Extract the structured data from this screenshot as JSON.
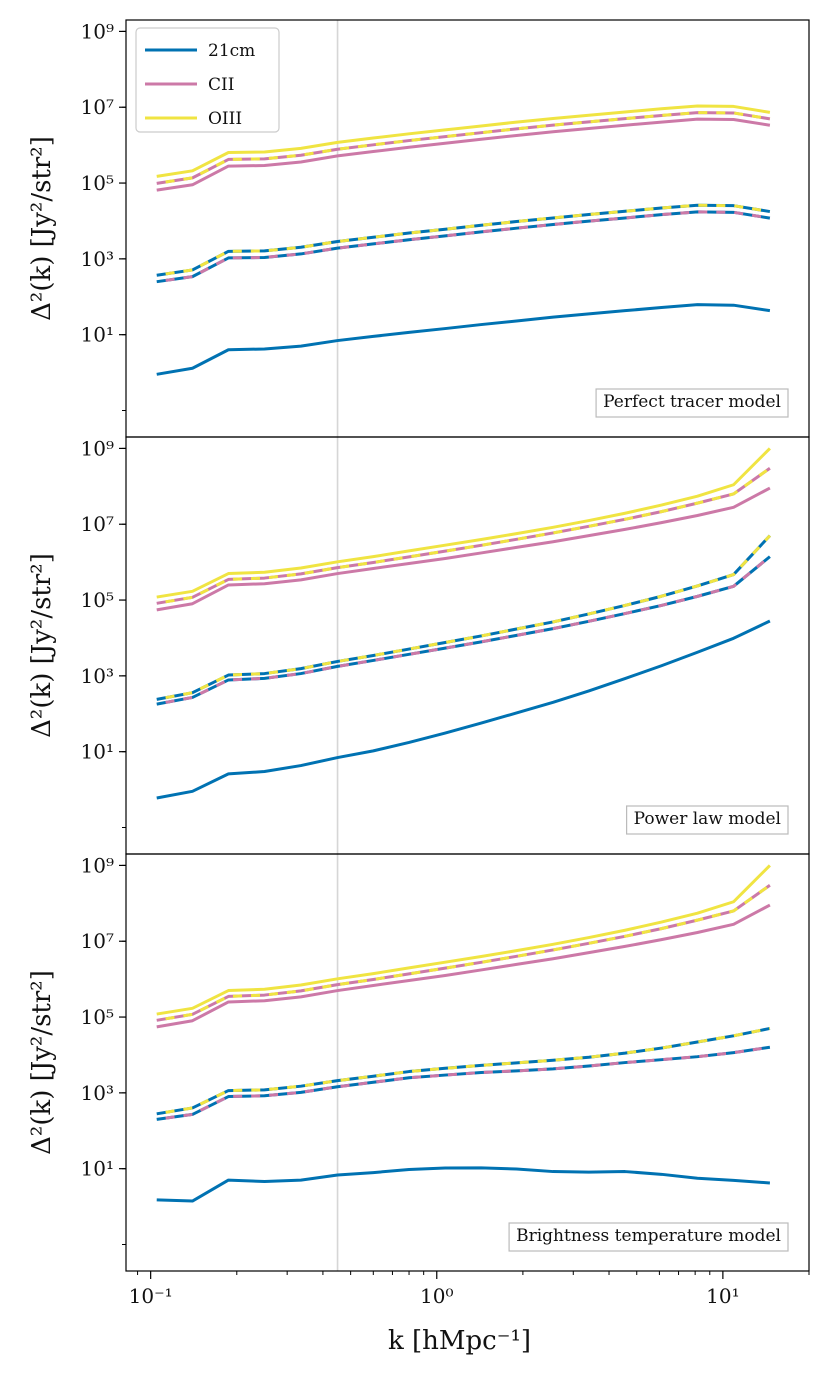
{
  "chart_data": {
    "type": "line",
    "xscale": "log",
    "yscale": "log",
    "xlim": [
      0.082,
      20
    ],
    "ylim": [
      0.02,
      2000000000.0
    ],
    "xlabel": "k [hMpc⁻¹]",
    "ylabel": "Δ²(k) [Jy²/str²]",
    "x_ticks": [
      {
        "value": 0.1,
        "label": "10⁻¹"
      },
      {
        "value": 1,
        "label": "10⁰"
      },
      {
        "value": 10,
        "label": "10¹"
      }
    ],
    "y_ticks": [
      {
        "value": 10,
        "label": "10¹"
      },
      {
        "value": 1000,
        "label": "10³"
      },
      {
        "value": 100000,
        "label": "10⁵"
      },
      {
        "value": 10000000,
        "label": "10⁷"
      },
      {
        "value": 1000000000,
        "label": "10⁹"
      }
    ],
    "vline_x": 0.45,
    "colors": {
      "21cm": "#0072b2",
      "CII": "#cc79a7",
      "OIII": "#f0e442",
      "vline": "#d6d6d6"
    },
    "legend": {
      "position": "top-left",
      "entries": [
        "21cm",
        "CII",
        "OIII"
      ]
    },
    "x": [
      0.105,
      0.14,
      0.187,
      0.25,
      0.335,
      0.45,
      0.6,
      0.8,
      1.07,
      1.43,
      1.9,
      2.55,
      3.4,
      4.55,
      6.1,
      8.15,
      10.9,
      14.6
    ],
    "panels": [
      {
        "annotation": "Perfect tracer model",
        "series": [
          {
            "name": "21cm",
            "style": "solid",
            "colors": [
              "21cm"
            ],
            "values": [
              0.9,
              1.3,
              4.0,
              4.2,
              5.0,
              7.0,
              9.0,
              11.5,
              14.5,
              18.5,
              23.0,
              29.0,
              35.5,
              43.0,
              52.0,
              62.0,
              60.0,
              43.0
            ]
          },
          {
            "name": "CII",
            "style": "solid",
            "colors": [
              "CII"
            ],
            "values": [
              65000,
              90000,
              280000,
              290000,
              360000,
              520000,
              680000,
              880000,
              1120000,
              1430000,
              1800000,
              2250000,
              2750000,
              3350000,
              4050000,
              4850000,
              4750000,
              3350000
            ]
          },
          {
            "name": "OIII",
            "style": "solid",
            "colors": [
              "OIII"
            ],
            "values": [
              150000,
              210000,
              640000,
              660000,
              820000,
              1180000,
              1540000,
              1990000,
              2520000,
              3200000,
              4050000,
              5050000,
              6150000,
              7500000,
              9100000,
              10800000,
              10500000,
              7300000
            ]
          },
          {
            "name": "21cm×CII",
            "style": "dashed",
            "colors": [
              "21cm",
              "CII"
            ],
            "values": [
              250,
              340,
              1060,
              1090,
              1350,
              1920,
              2480,
              3200,
              4050,
              5150,
              6450,
              8050,
              9900,
              12000,
              14700,
              17400,
              16900,
              11900
            ]
          },
          {
            "name": "21cm×OIII",
            "style": "dashed",
            "colors": [
              "21cm",
              "OIII"
            ],
            "values": [
              370,
              510,
              1580,
              1620,
              2020,
              2870,
              3720,
              4800,
              6050,
              7700,
              9650,
              12000,
              14800,
              18000,
              22000,
              26000,
              25300,
              17700
            ]
          },
          {
            "name": "CII×OIII",
            "style": "dashed",
            "colors": [
              "CII",
              "OIII"
            ],
            "values": [
              98000,
              137000,
              420000,
              435000,
              540000,
              780000,
              1020000,
              1320000,
              1680000,
              2130000,
              2690000,
              3370000,
              4110000,
              5010000,
              6070000,
              7230000,
              7070000,
              4940000
            ]
          }
        ]
      },
      {
        "annotation": "Power law model",
        "series": [
          {
            "name": "21cm",
            "style": "solid",
            "colors": [
              "21cm"
            ],
            "values": [
              0.6,
              0.9,
              2.6,
              3.0,
              4.3,
              7.0,
              10.5,
              17.5,
              31.0,
              57.0,
              105.0,
              200.0,
              400.0,
              850.0,
              1850.0,
              4200.0,
              9800.0,
              28000.0
            ]
          },
          {
            "name": "CII",
            "style": "solid",
            "colors": [
              "CII"
            ],
            "values": [
              55000,
              80000,
              250000,
              270000,
              340000,
              500000,
              680000,
              920000,
              1250000,
              1750000,
              2450000,
              3450000,
              5000000,
              7300000,
              11000000,
              17000000,
              28000000,
              90000000
            ]
          },
          {
            "name": "OIII",
            "style": "solid",
            "colors": [
              "OIII"
            ],
            "values": [
              120000,
              170000,
              500000,
              540000,
              700000,
              1020000,
              1400000,
              1980000,
              2800000,
              3950000,
              5650000,
              8300000,
              12500000,
              19500000,
              32000000,
              55000000,
              110000000,
              1000000000
            ]
          },
          {
            "name": "21cm×CII",
            "style": "dashed",
            "colors": [
              "21cm",
              "CII"
            ],
            "values": [
              180,
              270,
              780,
              860,
              1150,
              1780,
              2550,
              3700,
              5400,
              7900,
              11700,
              17600,
              27500,
              44000,
              72000,
              125000,
              230000,
              1400000
            ]
          },
          {
            "name": "21cm×OIII",
            "style": "dashed",
            "colors": [
              "21cm",
              "OIII"
            ],
            "values": [
              240,
              360,
              1050,
              1150,
              1550,
              2400,
              3450,
              5100,
              7600,
              11300,
              17200,
              26500,
              43000,
              72000,
              126000,
              235000,
              470000,
              5000000
            ]
          },
          {
            "name": "CII×OIII",
            "style": "dashed",
            "colors": [
              "CII",
              "OIII"
            ],
            "values": [
              82000,
              118000,
              350000,
              380000,
              490000,
              715000,
              980000,
              1380000,
              1950000,
              2780000,
              4000000,
              5900000,
              8800000,
              13500000,
              21500000,
              36000000,
              63000000,
              300000000
            ]
          }
        ]
      },
      {
        "annotation": "Brightness temperature model",
        "series": [
          {
            "name": "21cm",
            "style": "solid",
            "colors": [
              "21cm"
            ],
            "values": [
              1.5,
              1.4,
              5.0,
              4.6,
              5.0,
              6.8,
              7.9,
              9.5,
              10.4,
              10.5,
              9.8,
              8.4,
              8.1,
              8.4,
              7.1,
              5.6,
              4.9,
              4.2
            ]
          },
          {
            "name": "CII",
            "style": "solid",
            "colors": [
              "CII"
            ],
            "values": [
              55000,
              80000,
              250000,
              270000,
              340000,
              500000,
              680000,
              920000,
              1250000,
              1750000,
              2450000,
              3450000,
              5000000,
              7300000,
              11000000,
              17000000,
              28000000,
              90000000
            ]
          },
          {
            "name": "OIII",
            "style": "solid",
            "colors": [
              "OIII"
            ],
            "values": [
              120000,
              170000,
              500000,
              540000,
              700000,
              1020000,
              1400000,
              1980000,
              2800000,
              3950000,
              5650000,
              8300000,
              12500000,
              19500000,
              32000000,
              55000000,
              110000000,
              1000000000
            ]
          },
          {
            "name": "21cm×CII",
            "style": "dashed",
            "colors": [
              "21cm",
              "CII"
            ],
            "values": [
              200,
              270,
              800,
              840,
              1030,
              1450,
              1900,
              2500,
              2950,
              3450,
              3800,
              4300,
              5100,
              6300,
              7500,
              9000,
              11500,
              16000
            ]
          },
          {
            "name": "21cm×OIII",
            "style": "dashed",
            "colors": [
              "21cm",
              "OIII"
            ],
            "values": [
              280,
              400,
              1150,
              1200,
              1500,
              2100,
              2750,
              3650,
              4450,
              5300,
              6200,
              7250,
              8700,
              11200,
              15200,
              22000,
              32000,
              50000
            ]
          },
          {
            "name": "CII×OIII",
            "style": "dashed",
            "colors": [
              "CII",
              "OIII"
            ],
            "values": [
              82000,
              118000,
              350000,
              380000,
              490000,
              715000,
              980000,
              1380000,
              1950000,
              2780000,
              4000000,
              5900000,
              8800000,
              13500000,
              21500000,
              36000000,
              63000000,
              300000000
            ]
          }
        ]
      }
    ]
  }
}
